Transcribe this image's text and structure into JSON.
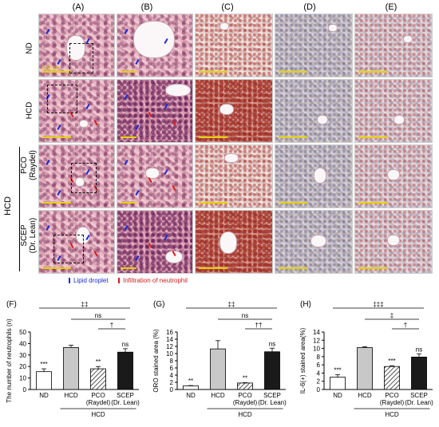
{
  "columns": [
    "(A)",
    "(B)",
    "(C)",
    "(D)",
    "(E)"
  ],
  "rows": {
    "nd": "ND",
    "hcd": "HCD",
    "pco": "PCO\n(Raydel)",
    "scep": "SCEP\n(Dr. Lean)",
    "group": "HCD"
  },
  "scale_text": "100 μm",
  "legend": {
    "lipid": "Lipid droplet",
    "neutrophil": "Infiltration of neutrophil"
  },
  "colors": {
    "blue_arrow": "#1b2bd6",
    "red_arrow": "#d81b1b"
  },
  "chart_data": [
    {
      "panel": "(F)",
      "type": "bar",
      "ylabel": "The number of neutrophils (n)",
      "ylim": [
        0,
        50
      ],
      "yticks": [
        "0",
        "10",
        "20",
        "30",
        "40",
        "50"
      ],
      "categories": [
        "ND",
        "HCD",
        "PCO\n(Raydel)",
        "SCEP\n(Dr. Lean)"
      ],
      "values": [
        15.5,
        36.5,
        18,
        32.5
      ],
      "errors": [
        2.5,
        2,
        2,
        3
      ],
      "fills": [
        "white",
        "lightgray",
        "hatched",
        "black"
      ],
      "bar_labels": [
        "***",
        "",
        "**",
        "ns"
      ],
      "brackets": [
        {
          "from": 0,
          "to": 3,
          "text": "‡‡"
        },
        {
          "from": 1,
          "to": 3,
          "text": "ns"
        },
        {
          "from": 2,
          "to": 3,
          "text": "†"
        }
      ],
      "group_label": "HCD"
    },
    {
      "panel": "(G)",
      "type": "bar",
      "ylabel": "ORO stained area (%)",
      "ylim": [
        0,
        16
      ],
      "yticks": [
        "0",
        "2",
        "4",
        "6",
        "8",
        "10",
        "12",
        "14",
        "16"
      ],
      "categories": [
        "ND",
        "HCD",
        "PCO\n(Raydel)",
        "SCEP\n(Dr. Lean)"
      ],
      "values": [
        1.0,
        11.3,
        1.8,
        10.5
      ],
      "errors": [
        0.1,
        2.3,
        0.1,
        1.0
      ],
      "fills": [
        "white",
        "lightgray",
        "hatched",
        "black"
      ],
      "bar_labels": [
        "**",
        "",
        "**",
        "ns"
      ],
      "brackets": [
        {
          "from": 0,
          "to": 3,
          "text": "‡‡"
        },
        {
          "from": 1,
          "to": 3,
          "text": "ns"
        },
        {
          "from": 2,
          "to": 3,
          "text": "††"
        }
      ],
      "group_label": "HCD"
    },
    {
      "panel": "(H)",
      "type": "bar",
      "ylabel": "IL-6(+) stained area(%)",
      "ylim": [
        0,
        14
      ],
      "yticks": [
        "0",
        "2",
        "4",
        "6",
        "8",
        "10",
        "12",
        "14"
      ],
      "categories": [
        "ND",
        "HCD",
        "PCO\n(Raydel)",
        "SCEP\n(Dr. Lean)"
      ],
      "values": [
        3.0,
        10.2,
        5.6,
        7.9
      ],
      "errors": [
        0.6,
        0.2,
        0.2,
        0.8
      ],
      "fills": [
        "white",
        "lightgray",
        "hatched",
        "black"
      ],
      "bar_labels": [
        "***",
        "",
        "***",
        "ns"
      ],
      "brackets": [
        {
          "from": 0,
          "to": 3,
          "text": "‡‡‡"
        },
        {
          "from": 1,
          "to": 3,
          "text": "‡"
        },
        {
          "from": 2,
          "to": 3,
          "text": "†"
        }
      ],
      "group_label": "HCD"
    }
  ]
}
